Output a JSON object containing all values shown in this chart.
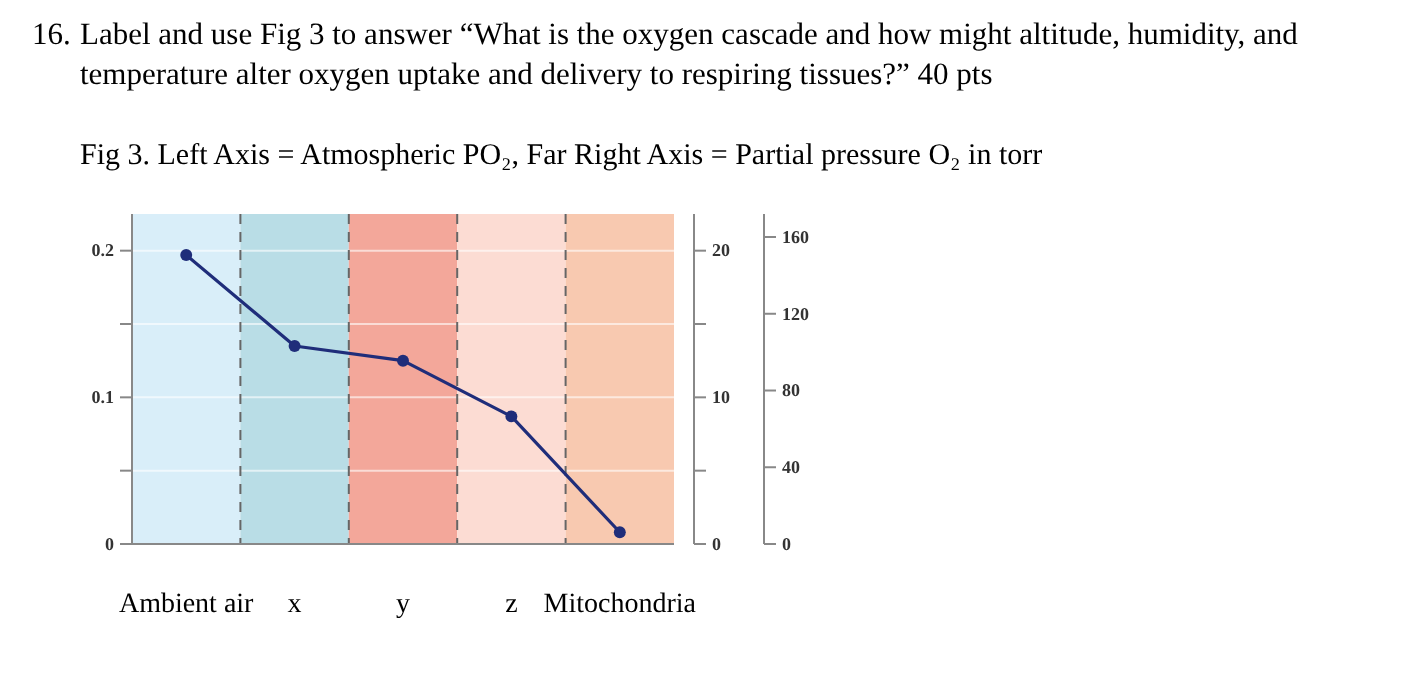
{
  "chart_data": {
    "type": "line",
    "title": "16. Label and use Fig 3 to answer “What is the oxygen cascade and how might altitude, humidity, and temperature alter oxygen uptake and delivery to respiring tissues?” 40 pts",
    "subtitle": "Fig 3.   Left Axis = Atmospheric PO₂, Far Right Axis = Partial pressure O₂ in torr",
    "categories": [
      "Ambient air",
      "x",
      "y",
      "z",
      "Mitochondria"
    ],
    "series": [
      {
        "color": "#1f2d7a",
        "values": [
          0.197,
          0.135,
          0.125,
          0.087,
          0.008
        ]
      }
    ],
    "ylim": [
      0,
      0.225
    ],
    "yticks": [
      0,
      {
        "value": 0.05,
        "label": null
      },
      0.1,
      {
        "value": 0.15,
        "label": null
      },
      0.2
    ],
    "y2lim": [
      0,
      22.5
    ],
    "y2ticks": [
      0,
      {
        "value": 5,
        "label": null
      },
      10,
      {
        "value": 15,
        "label": null
      },
      20
    ],
    "y3lim": [
      0,
      172
    ],
    "y3ticks": [
      0,
      40,
      80,
      120,
      160
    ],
    "bands": [
      {
        "axis": "x",
        "from": "Ambient air",
        "to": "Ambient air",
        "color": "#d9eef9"
      },
      {
        "axis": "x",
        "from": "x",
        "to": "x",
        "color": "#b9dde6"
      },
      {
        "axis": "x",
        "from": "y",
        "to": "y",
        "color": "#f3a79a"
      },
      {
        "axis": "x",
        "from": "z",
        "to": "z",
        "color": "#fcdcd3"
      },
      {
        "axis": "x",
        "from": "Mitochondria",
        "to": "Mitochondria",
        "color": "#f8c9b0"
      }
    ],
    "grid": "y",
    "marker": "circle",
    "line_style": "solid"
  }
}
